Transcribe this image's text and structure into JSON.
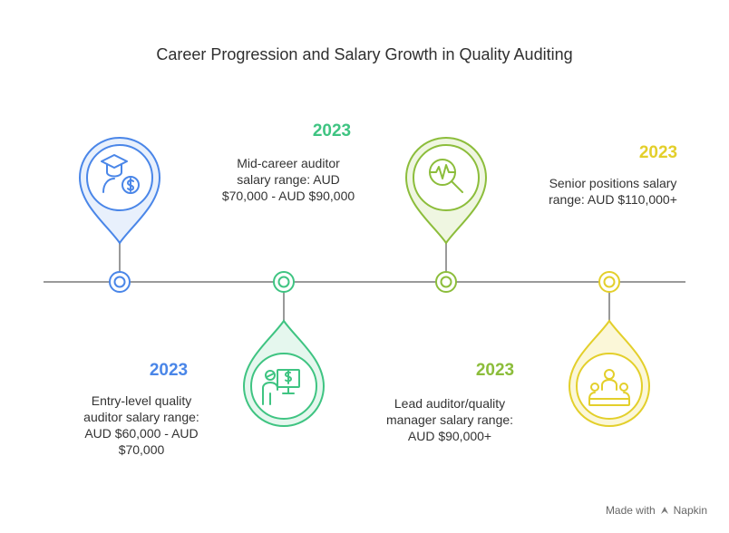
{
  "title": "Career Progression and Salary Growth in Quality Auditing",
  "milestones": [
    {
      "year": "2023",
      "lines": [
        "Entry-level quality",
        "auditor salary range:",
        "AUD $60,000 - AUD",
        "$70,000"
      ],
      "color": "#4a86e8",
      "icon": "graduate-salary-icon"
    },
    {
      "year": "2023",
      "lines": [
        "Mid-career auditor",
        "salary range: AUD",
        "$70,000 - AUD $90,000"
      ],
      "color": "#3fc482",
      "icon": "presenter-board-icon"
    },
    {
      "year": "2023",
      "lines": [
        "Lead auditor/quality",
        "manager salary range:",
        "AUD $90,000+"
      ],
      "color": "#8cbd3b",
      "icon": "magnifier-pulse-icon"
    },
    {
      "year": "2023",
      "lines": [
        "Senior positions salary",
        "range: AUD $110,000+"
      ],
      "color": "#e3cf2b",
      "icon": "team-meeting-icon"
    }
  ],
  "footer": {
    "made_with": "Made with",
    "brand": "Napkin"
  }
}
